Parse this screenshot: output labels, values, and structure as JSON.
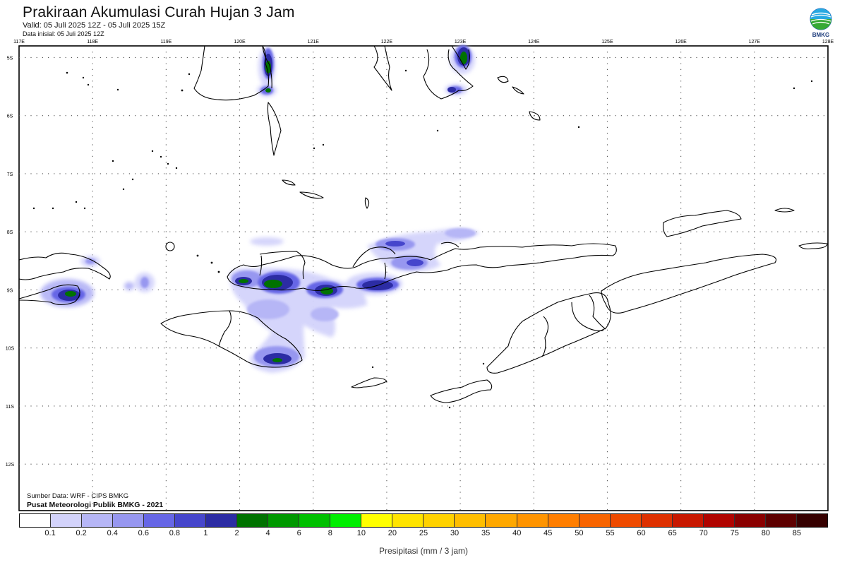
{
  "header": {
    "title": "Prakiraan Akumulasi Curah Hujan 3 Jam",
    "valid": "Valid: 05 Juli 2025 12Z - 05 Juli 2025 15Z",
    "initial": "Data inisial: 05 Juli 2025 12Z"
  },
  "logo": {
    "text": "BMKG",
    "colors": [
      "#1f5fb5",
      "#27a9e1",
      "#36a935"
    ]
  },
  "map": {
    "lon_labels": [
      "117E",
      "118E",
      "119E",
      "120E",
      "121E",
      "122E",
      "123E",
      "124E",
      "125E",
      "126E",
      "127E",
      "128E"
    ],
    "lat_labels": [
      "5S",
      "6S",
      "7S",
      "8S",
      "9S",
      "10S",
      "11S",
      "12S"
    ],
    "lon_range": [
      117,
      128
    ],
    "lat_range": [
      -4.8,
      -12.8
    ],
    "grid": "dotted"
  },
  "credits": {
    "source": "Sumber Data: WRF - CIPS BMKG",
    "center": "Pusat Meteorologi Publik BMKG - 2021"
  },
  "legend": {
    "colors": [
      "#ffffff",
      "#d3d3fb",
      "#b6b6f6",
      "#9797f0",
      "#6666e6",
      "#4646cc",
      "#2c2ca4",
      "#007200",
      "#009800",
      "#00c000",
      "#00ee00",
      "#ffff00",
      "#ffe400",
      "#ffd200",
      "#ffbe00",
      "#ffa800",
      "#ff9400",
      "#ff7e00",
      "#f86400",
      "#ee4a00",
      "#de3000",
      "#c81800",
      "#b00400",
      "#8a0000",
      "#5e0000",
      "#360000"
    ],
    "labels": [
      "0.1",
      "0.2",
      "0.4",
      "0.6",
      "0.8",
      "1",
      "2",
      "4",
      "6",
      "8",
      "10",
      "20",
      "25",
      "30",
      "35",
      "40",
      "45",
      "50",
      "55",
      "60",
      "65",
      "70",
      "75",
      "80",
      "85"
    ],
    "unit": "Presipitasi (mm / 3 jam)"
  }
}
